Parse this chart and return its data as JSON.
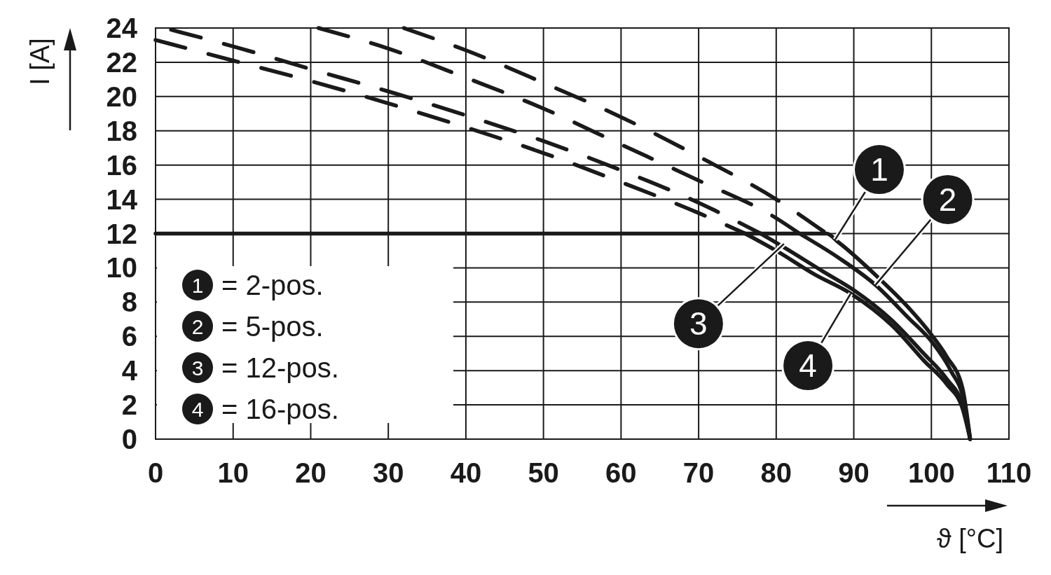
{
  "chart_data": {
    "type": "line",
    "xlabel": "ϑ [°C]",
    "ylabel": "I [A]",
    "xlim": [
      0,
      110
    ],
    "ylim": [
      0,
      24
    ],
    "xticks": [
      0,
      10,
      20,
      30,
      40,
      50,
      60,
      70,
      80,
      90,
      100,
      110
    ],
    "yticks": [
      0,
      2,
      4,
      6,
      8,
      10,
      12,
      14,
      16,
      18,
      20,
      22,
      24
    ],
    "grid": true,
    "legend": "bottom left",
    "series": [
      {
        "name": "= 2-pos.",
        "color": "#1a1a1a",
        "line_style": "solid",
        "x": [
          0,
          86.5,
          88,
          93,
          97,
          100,
          102,
          104,
          105
        ],
        "values": [
          12,
          12,
          11.5,
          9.5,
          7.7,
          6.1,
          4.8,
          3.0,
          0
        ]
      },
      {
        "name": "= 5-pos.",
        "color": "#1a1a1a",
        "line_style": "solid",
        "x": [
          83,
          88,
          92.8,
          97,
          100.2,
          102.5,
          104.2,
          105
        ],
        "values": [
          12,
          10.6,
          9.0,
          7.1,
          5.6,
          4.0,
          2.2,
          0
        ]
      },
      {
        "name": "= 12-pos.",
        "color": "#1a1a1a",
        "line_style": "solid",
        "x": [
          78,
          81,
          86,
          90,
          95,
          99,
          102,
          104,
          105
        ],
        "values": [
          12,
          11.2,
          9.8,
          8.7,
          6.9,
          5.0,
          3.5,
          2.0,
          0
        ]
      },
      {
        "name": "= 16-pos.",
        "color": "#1a1a1a",
        "line_style": "solid",
        "x": [
          76,
          80,
          85,
          89.6,
          95,
          99,
          102,
          104,
          105
        ],
        "values": [
          12,
          11.0,
          9.6,
          8.5,
          6.6,
          4.6,
          3.2,
          1.8,
          0
        ]
      },
      {
        "color": "#1a1a1a",
        "line_style": "dashed",
        "x": [
          32,
          40,
          50,
          60,
          70,
          80,
          86.5
        ],
        "values": [
          24,
          22.7,
          20.8,
          18.8,
          16.5,
          14.0,
          12
        ]
      },
      {
        "color": "#1a1a1a",
        "line_style": "dashed",
        "x": [
          21,
          30,
          40,
          50,
          60,
          70,
          80,
          83
        ],
        "values": [
          24,
          22.8,
          21.1,
          19.3,
          17.2,
          15.1,
          12.9,
          12
        ]
      },
      {
        "color": "#1a1a1a",
        "line_style": "dashed",
        "x": [
          2,
          11,
          20,
          30,
          40,
          50,
          60,
          70,
          78
        ],
        "values": [
          23.9,
          22.8,
          21.6,
          20.3,
          18.9,
          17.4,
          15.7,
          13.8,
          12
        ]
      },
      {
        "color": "#1a1a1a",
        "line_style": "dashed",
        "x": [
          0,
          10,
          20,
          30,
          40,
          50,
          60,
          70,
          76
        ],
        "values": [
          23.3,
          22.1,
          20.9,
          19.6,
          18.2,
          16.7,
          15.0,
          13.2,
          12
        ]
      }
    ],
    "annotations": [
      {
        "text": "1",
        "x": 87.6,
        "y": 11.65
      },
      {
        "text": "2",
        "x": 92.8,
        "y": 9.0
      },
      {
        "text": "3",
        "x": 81,
        "y": 11.4
      },
      {
        "text": "4",
        "x": 89.6,
        "y": 8.5
      }
    ]
  }
}
